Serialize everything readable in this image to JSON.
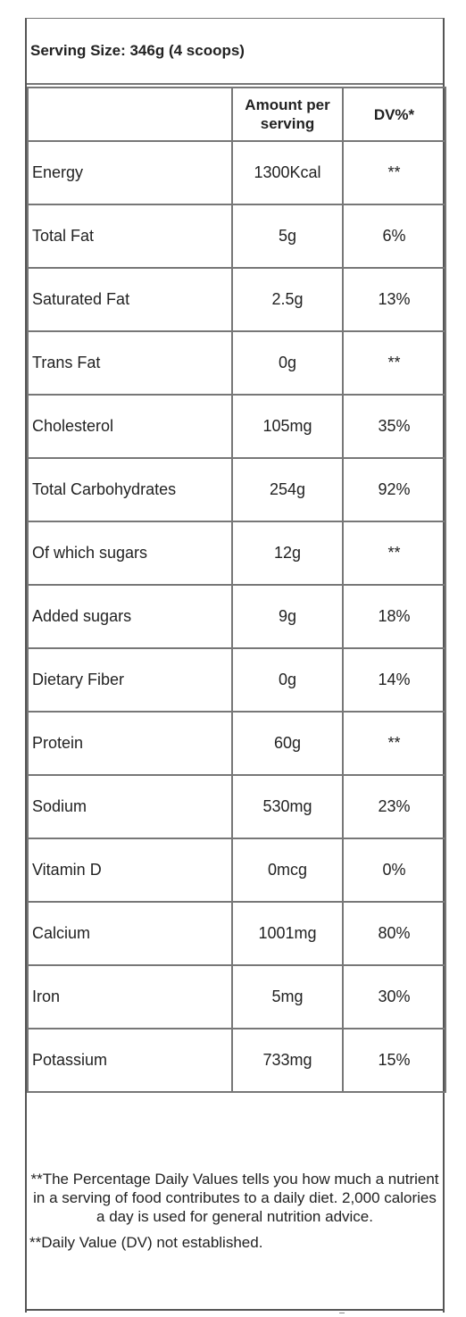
{
  "serving_size": "Serving Size: 346g (4 scoops)",
  "headers": {
    "nutrient": "",
    "amount": "Amount per serving",
    "dv": "DV%*"
  },
  "rows": [
    {
      "nutrient": "Energy",
      "amount": "1300Kcal",
      "dv": "**"
    },
    {
      "nutrient": "Total Fat",
      "amount": "5g",
      "dv": "6%"
    },
    {
      "nutrient": "Saturated Fat",
      "amount": "2.5g",
      "dv": "13%"
    },
    {
      "nutrient": "Trans Fat",
      "amount": "0g",
      "dv": "**"
    },
    {
      "nutrient": "Cholesterol",
      "amount": "105mg",
      "dv": "35%"
    },
    {
      "nutrient": "Total Carbohydrates",
      "amount": "254g",
      "dv": "92%"
    },
    {
      "nutrient": "Of which sugars",
      "amount": "12g",
      "dv": "**"
    },
    {
      "nutrient": "Added sugars",
      "amount": "9g",
      "dv": "18%"
    },
    {
      "nutrient": "Dietary Fiber",
      "amount": "0g",
      "dv": "14%"
    },
    {
      "nutrient": "Protein",
      "amount": "60g",
      "dv": "**"
    },
    {
      "nutrient": "Sodium",
      "amount": "530mg",
      "dv": "23%"
    },
    {
      "nutrient": "Vitamin D",
      "amount": "0mcg",
      "dv": "0%"
    },
    {
      "nutrient": "Calcium",
      "amount": "1001mg",
      "dv": "80%"
    },
    {
      "nutrient": "Iron",
      "amount": "5mg",
      "dv": "30%"
    },
    {
      "nutrient": "Potassium",
      "amount": "733mg",
      "dv": "15%"
    }
  ],
  "notes": {
    "percentage_note": "**The Percentage Daily Values tells you how much a nutrient in a serving of food contributes to a daily diet. 2,000 calories a day is used for general nutrition advice.",
    "dv_note": "**Daily Value (DV) not established."
  }
}
